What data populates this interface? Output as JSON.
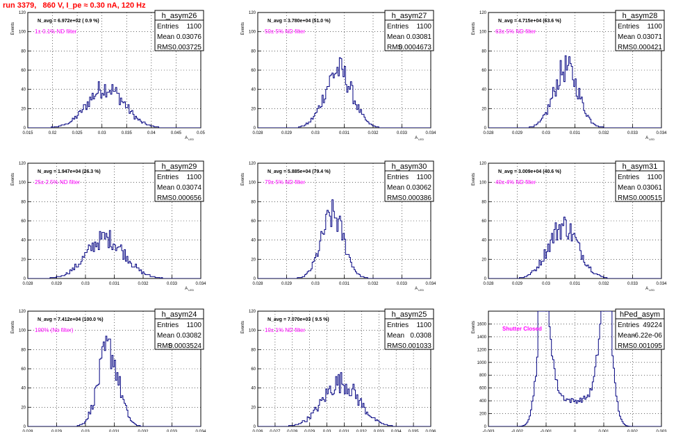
{
  "title": "run 3379,   860 V, I_pe ≈ 0.30 nA, 120 Hz",
  "colors": {
    "hist": "#000080",
    "annotation": "#ff00ff",
    "title": "#ff0000",
    "grid": "#000000"
  },
  "stat_labels": {
    "entries": "Entries",
    "mean": "Mean",
    "rms": "RMS"
  },
  "chart_data": [
    {
      "type": "histogram",
      "name": "h_asym26",
      "ylabel": "Events",
      "xlabel": "A_{LED}",
      "xlim": [
        0.015,
        0.05
      ],
      "ylim": [
        0,
        120
      ],
      "xticks": [
        "0.015",
        "0.02",
        "0.025",
        "0.03",
        "0.035",
        "0.04",
        "0.045",
        "0.05"
      ],
      "yticks": [
        "0",
        "20",
        "40",
        "60",
        "80",
        "100",
        "120"
      ],
      "navg": "N_avg = 6.972e+02 ( 0.9 %)",
      "filter": "1± 0.1% ND filter",
      "entries": "1100",
      "mean": "0.03076",
      "rms": "0.003725",
      "binning": {
        "lo": 0.015,
        "hi": 0.05,
        "nbins": 140
      },
      "peak": 0.0308,
      "sigma": 0.0037,
      "height": 42
    },
    {
      "type": "histogram",
      "name": "h_asym27",
      "ylabel": "Events",
      "xlabel": "A_{LED}",
      "xlim": [
        0.028,
        0.034
      ],
      "ylim": [
        0,
        120
      ],
      "xticks": [
        "0.028",
        "0.029",
        "0.03",
        "0.031",
        "0.032",
        "0.033",
        "0.034"
      ],
      "yticks": [
        "0",
        "20",
        "40",
        "60",
        "80",
        "100",
        "120"
      ],
      "navg": "N_avg = 3.780e+04 (51.0 %)",
      "filter": "50± 5% ND filter",
      "entries": "1100",
      "mean": "0.03081",
      "rms": "0.0004673",
      "binning": {
        "lo": 0.028,
        "hi": 0.034,
        "nbins": 140
      },
      "peak": 0.0308,
      "sigma": 0.00047,
      "height": 60
    },
    {
      "type": "histogram",
      "name": "h_asym28",
      "ylabel": "Events",
      "xlabel": "A_{LED}",
      "xlim": [
        0.028,
        0.034
      ],
      "ylim": [
        0,
        120
      ],
      "xticks": [
        "0.028",
        "0.029",
        "0.03",
        "0.031",
        "0.032",
        "0.033",
        "0.034"
      ],
      "yticks": [
        "0",
        "20",
        "40",
        "60",
        "80",
        "100",
        "120"
      ],
      "navg": "N_avg = 4.715e+04 (63.6 %)",
      "filter": "63± 5% ND filter",
      "entries": "1100",
      "mean": "0.03071",
      "rms": "0.000421",
      "binning": {
        "lo": 0.028,
        "hi": 0.034,
        "nbins": 140
      },
      "peak": 0.0307,
      "sigma": 0.00042,
      "height": 62
    },
    {
      "type": "histogram",
      "name": "h_asym29",
      "ylabel": "Events",
      "xlabel": "A_{LED}",
      "xlim": [
        0.028,
        0.034
      ],
      "ylim": [
        0,
        120
      ],
      "xticks": [
        "0.028",
        "0.029",
        "0.03",
        "0.031",
        "0.032",
        "0.033",
        "0.034"
      ],
      "yticks": [
        "0",
        "20",
        "40",
        "60",
        "80",
        "100",
        "120"
      ],
      "navg": "N_avg = 1.947e+04 (26.3 %)",
      "filter": "25± 2.5% ND filter",
      "entries": "1100",
      "mean": "0.03074",
      "rms": "0.000656",
      "binning": {
        "lo": 0.028,
        "hi": 0.034,
        "nbins": 140
      },
      "peak": 0.0307,
      "sigma": 0.00066,
      "height": 42
    },
    {
      "type": "histogram",
      "name": "h_asym30",
      "ylabel": "Events",
      "xlabel": "A_{LED}",
      "xlim": [
        0.028,
        0.034
      ],
      "ylim": [
        0,
        120
      ],
      "xticks": [
        "0.028",
        "0.029",
        "0.03",
        "0.031",
        "0.032",
        "0.033",
        "0.034"
      ],
      "yticks": [
        "0",
        "20",
        "40",
        "60",
        "80",
        "100",
        "120"
      ],
      "navg": "N_avg = 5.885e+04 (79.4 %)",
      "filter": "79± 5% ND filter",
      "entries": "1100",
      "mean": "0.03062",
      "rms": "0.000386",
      "binning": {
        "lo": 0.028,
        "hi": 0.034,
        "nbins": 140
      },
      "peak": 0.0306,
      "sigma": 0.00039,
      "height": 66
    },
    {
      "type": "histogram",
      "name": "h_asym31",
      "ylabel": "Events",
      "xlabel": "A_{LED}",
      "xlim": [
        0.028,
        0.034
      ],
      "ylim": [
        0,
        120
      ],
      "xticks": [
        "0.028",
        "0.029",
        "0.03",
        "0.031",
        "0.032",
        "0.033",
        "0.034"
      ],
      "yticks": [
        "0",
        "20",
        "40",
        "60",
        "80",
        "100",
        "120"
      ],
      "navg": "N_avg = 3.009e+04 (40.6 %)",
      "filter": "40± 4% ND filter",
      "entries": "1100",
      "mean": "0.03061",
      "rms": "0.000515",
      "binning": {
        "lo": 0.028,
        "hi": 0.034,
        "nbins": 140
      },
      "peak": 0.0306,
      "sigma": 0.00052,
      "height": 55
    },
    {
      "type": "histogram",
      "name": "h_asym24",
      "ylabel": "Events",
      "xlabel": "A_{LED}",
      "xlim": [
        0.028,
        0.034
      ],
      "ylim": [
        0,
        120
      ],
      "xticks": [
        "0.028",
        "0.029",
        "0.03",
        "0.031",
        "0.032",
        "0.033",
        "0.034"
      ],
      "yticks": [
        "0",
        "20",
        "40",
        "60",
        "80",
        "100",
        "120"
      ],
      "navg": "N_avg = 7.412e+04 (100.0 %)",
      "filter": "100% (No filter)",
      "entries": "1100",
      "mean": "0.03082",
      "rms": "0.0003524",
      "binning": {
        "lo": 0.028,
        "hi": 0.034,
        "nbins": 140
      },
      "peak": 0.0308,
      "sigma": 0.00035,
      "height": 80
    },
    {
      "type": "histogram",
      "name": "h_asym25",
      "ylabel": "Events",
      "xlabel": "A_{LED}",
      "xlim": [
        0.026,
        0.036
      ],
      "ylim": [
        0,
        120
      ],
      "xticks": [
        "0.026",
        "0.027",
        "0.028",
        "0.029",
        "0.03",
        "0.031",
        "0.032",
        "0.033",
        "0.034",
        "0.035",
        "0.036"
      ],
      "yticks": [
        "0",
        "20",
        "40",
        "60",
        "80",
        "100",
        "120"
      ],
      "navg": "N_avg = 7.070e+03 ( 9.5 %)",
      "filter": "10± 1% ND filter",
      "entries": "1100",
      "mean": "0.0308",
      "rms": "0.001033",
      "binning": {
        "lo": 0.026,
        "hi": 0.036,
        "nbins": 140
      },
      "peak": 0.0308,
      "sigma": 0.00103,
      "height": 46
    },
    {
      "type": "histogram",
      "name": "hPed_asym",
      "ylabel": "Events",
      "xlabel": "",
      "xlim": [
        -0.003,
        0.003
      ],
      "ylim": [
        0,
        1800
      ],
      "xticks": [
        "-0.003",
        "-0.002",
        "-0.001",
        "0",
        "0.001",
        "0.002",
        "0.003"
      ],
      "yticks": [
        "0",
        "200",
        "400",
        "600",
        "800",
        "1000",
        "1200",
        "1400",
        "1600"
      ],
      "navg": "",
      "filter": "Shutter Closed",
      "entries": "49224",
      "mean": "-6.22e-06",
      "rms": "0.001095",
      "binning": {
        "lo": -0.003,
        "hi": 0.003,
        "nbins": 140
      },
      "bimodal": true
    }
  ]
}
